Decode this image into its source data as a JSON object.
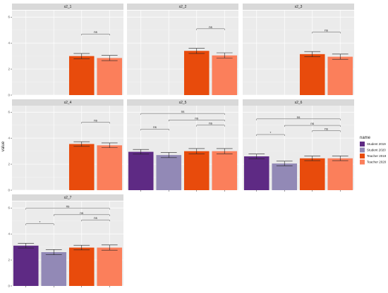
{
  "chart_data": {
    "type": "bar",
    "facet_layout": {
      "ncol": 3,
      "nrow": 3
    },
    "title": "",
    "xlabel": "",
    "ylabel": "value",
    "ylim": [
      0,
      6.5
    ],
    "y_ticks": [
      0,
      2,
      4,
      6
    ],
    "series_names": [
      "Student 2019",
      "Student 2020",
      "Teacher 2019",
      "Teacher 2020"
    ],
    "series_colors": [
      "#5e2a84",
      "#9289b6",
      "#e84b0c",
      "#fb7f5b"
    ],
    "legend": {
      "title": "name",
      "position": "right"
    },
    "panels": [
      {
        "label": "s2_1",
        "values": [
          null,
          null,
          3.0,
          2.85
        ],
        "errors": [
          null,
          null,
          0.2,
          0.2
        ],
        "comparisons": [
          {
            "from": 2,
            "to": 3,
            "label": "ns"
          }
        ]
      },
      {
        "label": "s2_2",
        "values": [
          null,
          null,
          3.4,
          3.05
        ],
        "errors": [
          null,
          null,
          0.2,
          0.2
        ],
        "comparisons": [
          {
            "from": 2,
            "to": 3,
            "label": "ns"
          }
        ]
      },
      {
        "label": "s2_3",
        "values": [
          null,
          null,
          3.15,
          2.95
        ],
        "errors": [
          null,
          null,
          0.2,
          0.2
        ],
        "comparisons": [
          {
            "from": 2,
            "to": 3,
            "label": "ns"
          }
        ]
      },
      {
        "label": "s2_4",
        "values": [
          null,
          null,
          3.55,
          3.45
        ],
        "errors": [
          null,
          null,
          0.18,
          0.18
        ],
        "comparisons": [
          {
            "from": 2,
            "to": 3,
            "label": "ns"
          }
        ]
      },
      {
        "label": "s2_5",
        "values": [
          2.95,
          2.7,
          3.0,
          3.0
        ],
        "errors": [
          0.18,
          0.2,
          0.2,
          0.2
        ],
        "comparisons": [
          {
            "from": 0,
            "to": 3,
            "label": "ns"
          },
          {
            "from": 1,
            "to": 3,
            "label": "ns"
          },
          {
            "from": 0,
            "to": 1,
            "label": "ns"
          },
          {
            "from": 2,
            "to": 3,
            "label": "ns"
          }
        ]
      },
      {
        "label": "s2_6",
        "values": [
          2.6,
          2.05,
          2.45,
          2.45
        ],
        "errors": [
          0.18,
          0.18,
          0.18,
          0.18
        ],
        "comparisons": [
          {
            "from": 0,
            "to": 3,
            "label": "ns"
          },
          {
            "from": 1,
            "to": 3,
            "label": "ns"
          },
          {
            "from": 0,
            "to": 1,
            "label": "*"
          },
          {
            "from": 2,
            "to": 3,
            "label": "ns"
          }
        ]
      },
      {
        "label": "s2_7",
        "values": [
          3.1,
          2.6,
          2.95,
          2.95
        ],
        "errors": [
          0.18,
          0.2,
          0.18,
          0.2
        ],
        "comparisons": [
          {
            "from": 0,
            "to": 3,
            "label": "ns"
          },
          {
            "from": 1,
            "to": 3,
            "label": "ns"
          },
          {
            "from": 0,
            "to": 1,
            "label": "*"
          },
          {
            "from": 2,
            "to": 3,
            "label": "ns"
          }
        ]
      }
    ]
  }
}
